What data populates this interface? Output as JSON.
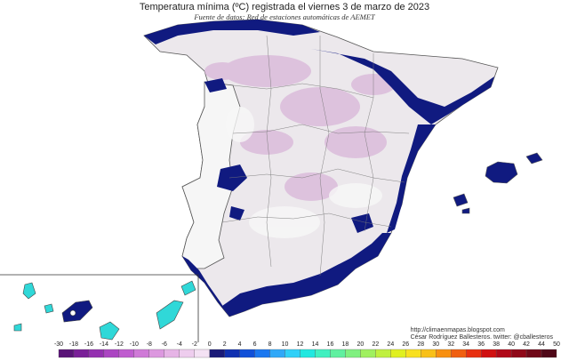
{
  "header": {
    "title": "Temperatura mínima (ºC) registrada el viernes 3 de marzo de 2023",
    "subtitle": "Fuente de datos: Red de estaciones automáticas de AEMET"
  },
  "credits": {
    "url": "http://climaenmapas.blogspot.com",
    "author": "César Rodríguez Ballesteros. twitter: @cballesteros"
  },
  "legend": {
    "ticks": [
      "-30",
      "-18",
      "-16",
      "-14",
      "-12",
      "-10",
      "-8",
      "-6",
      "-4",
      "-2",
      "0",
      "2",
      "4",
      "6",
      "8",
      "10",
      "12",
      "14",
      "16",
      "18",
      "20",
      "22",
      "24",
      "26",
      "28",
      "30",
      "32",
      "34",
      "36",
      "38",
      "40",
      "42",
      "44",
      "50"
    ],
    "colors": [
      "#5a1478",
      "#7a1f98",
      "#9430b0",
      "#ab45c2",
      "#bf5dcf",
      "#cf7ad7",
      "#dc98df",
      "#e6b4e6",
      "#eecdee",
      "#f4e2f4",
      "#1a1a78",
      "#1030b0",
      "#1050d8",
      "#1a78f0",
      "#30a8f8",
      "#30d0f8",
      "#20e8e0",
      "#40f0c0",
      "#60f0a0",
      "#80f080",
      "#a0f060",
      "#c0f040",
      "#e0f020",
      "#f8e020",
      "#f8c018",
      "#f89010",
      "#f06010",
      "#e83010",
      "#d01010",
      "#b00818",
      "#900818",
      "#700818",
      "#500818"
    ]
  },
  "map_colors": {
    "sea": "#ffffff",
    "land_base": "#ece8ec",
    "cold_coast": "#101a80",
    "border": "#555555",
    "province": "#7a7a7a",
    "frost": "#d8b6d8",
    "canary_cyan": "#30d8d8"
  }
}
